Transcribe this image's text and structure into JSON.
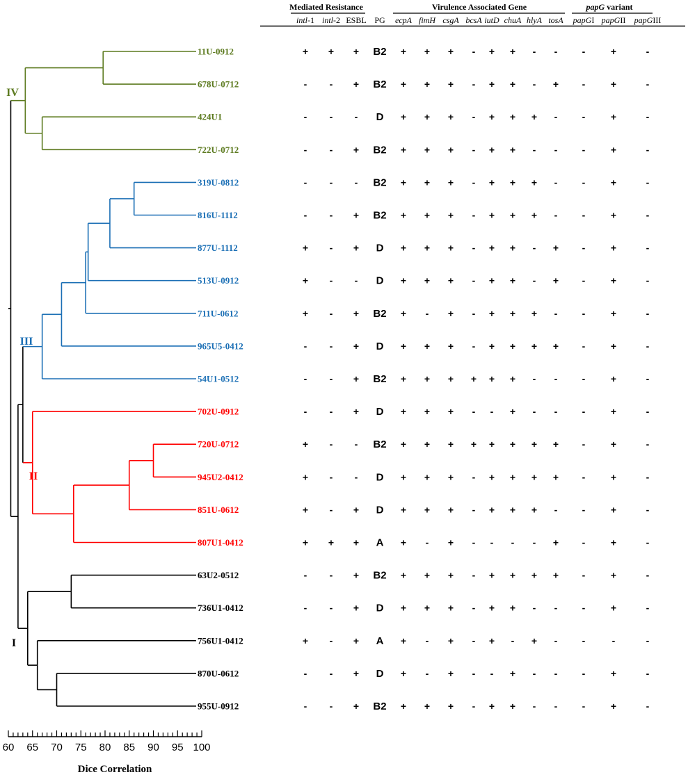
{
  "headers": {
    "groups": [
      {
        "key": "mediated",
        "label": "Mediated Resistance"
      },
      {
        "key": "virulence",
        "label": "Virulence Associated Gene"
      },
      {
        "key": "papg",
        "italic": "papG",
        "rest": " variant"
      }
    ],
    "columns": [
      {
        "italic": "intl",
        "rest": "-1"
      },
      {
        "italic": "intl",
        "rest": "-2"
      },
      {
        "italic": "",
        "rest": "ESBL"
      },
      {
        "italic": "",
        "rest": "PG"
      },
      {
        "italic": "ecpA",
        "rest": ""
      },
      {
        "italic": "fimH",
        "rest": ""
      },
      {
        "italic": "csgA",
        "rest": ""
      },
      {
        "italic": "bcsA",
        "rest": ""
      },
      {
        "italic": "iutD",
        "rest": ""
      },
      {
        "italic": "chuA",
        "rest": ""
      },
      {
        "italic": "hlyA",
        "rest": ""
      },
      {
        "italic": "tosA",
        "rest": ""
      },
      {
        "italic": "papG",
        "rest": "I"
      },
      {
        "italic": "papG",
        "rest": "II"
      },
      {
        "italic": "papG",
        "rest": "III"
      }
    ]
  },
  "colors": {
    "I": "#000000",
    "II": "#ff0000",
    "III": "#1b6fb5",
    "IV": "#5c7a1f"
  },
  "clade_labels": [
    "I",
    "II",
    "III",
    "IV"
  ],
  "strains": [
    {
      "name": "11U-0912",
      "clade": "IV",
      "cells": [
        "+",
        "+",
        "+",
        "B2",
        "+",
        "+",
        "+",
        "-",
        "+",
        "+",
        "-",
        "-",
        "-",
        "+",
        "-"
      ]
    },
    {
      "name": "678U-0712",
      "clade": "IV",
      "cells": [
        "-",
        "-",
        "+",
        "B2",
        "+",
        "+",
        "+",
        "-",
        "+",
        "+",
        "-",
        "+",
        "-",
        "+",
        "-"
      ]
    },
    {
      "name": "424U1",
      "clade": "IV",
      "cells": [
        "-",
        "-",
        "-",
        "D",
        "+",
        "+",
        "+",
        "-",
        "+",
        "+",
        "+",
        "-",
        "-",
        "+",
        "-"
      ]
    },
    {
      "name": "722U-0712",
      "clade": "IV",
      "cells": [
        "-",
        "-",
        "+",
        "B2",
        "+",
        "+",
        "+",
        "-",
        "+",
        "+",
        "-",
        "-",
        "-",
        "+",
        "-"
      ]
    },
    {
      "name": "319U-0812",
      "clade": "III",
      "cells": [
        "-",
        "-",
        "-",
        "B2",
        "+",
        "+",
        "+",
        "-",
        "+",
        "+",
        "+",
        "-",
        "-",
        "+",
        "-"
      ]
    },
    {
      "name": "816U-1112",
      "clade": "III",
      "cells": [
        "-",
        "-",
        "+",
        "B2",
        "+",
        "+",
        "+",
        "-",
        "+",
        "+",
        "+",
        "-",
        "-",
        "+",
        "-"
      ]
    },
    {
      "name": "877U-1112",
      "clade": "III",
      "cells": [
        "+",
        "-",
        "+",
        "D",
        "+",
        "+",
        "+",
        "-",
        "+",
        "+",
        "-",
        "+",
        "-",
        "+",
        "-"
      ]
    },
    {
      "name": "513U-0912",
      "clade": "III",
      "cells": [
        "+",
        "-",
        "-",
        "D",
        "+",
        "+",
        "+",
        "-",
        "+",
        "+",
        "-",
        "+",
        "-",
        "+",
        "-"
      ]
    },
    {
      "name": "711U-0612",
      "clade": "III",
      "cells": [
        "+",
        "-",
        "+",
        "B2",
        "+",
        "-",
        "+",
        "-",
        "+",
        "+",
        "+",
        "-",
        "-",
        "+",
        "-"
      ]
    },
    {
      "name": "965U5-0412",
      "clade": "III",
      "cells": [
        "-",
        "-",
        "+",
        "D",
        "+",
        "+",
        "+",
        "-",
        "+",
        "+",
        "+",
        "+",
        "-",
        "+",
        "-"
      ]
    },
    {
      "name": "54U1-0512",
      "clade": "III",
      "cells": [
        "-",
        "-",
        "+",
        "B2",
        "+",
        "+",
        "+",
        "+",
        "+",
        "+",
        "-",
        "-",
        "-",
        "+",
        "-"
      ]
    },
    {
      "name": "702U-0912",
      "clade": "II",
      "cells": [
        "-",
        "-",
        "+",
        "D",
        "+",
        "+",
        "+",
        "-",
        "-",
        "+",
        "-",
        "-",
        "-",
        "+",
        "-"
      ]
    },
    {
      "name": "720U-0712",
      "clade": "II",
      "cells": [
        "+",
        "-",
        "-",
        "B2",
        "+",
        "+",
        "+",
        "+",
        "+",
        "+",
        "+",
        "+",
        "-",
        "+",
        "-"
      ]
    },
    {
      "name": "945U2-0412",
      "clade": "II",
      "cells": [
        "+",
        "-",
        "-",
        "D",
        "+",
        "+",
        "+",
        "-",
        "+",
        "+",
        "+",
        "+",
        "-",
        "+",
        "-"
      ]
    },
    {
      "name": "851U-0612",
      "clade": "II",
      "cells": [
        "+",
        "-",
        "+",
        "D",
        "+",
        "+",
        "+",
        "-",
        "+",
        "+",
        "+",
        "-",
        "-",
        "+",
        "-"
      ]
    },
    {
      "name": "807U1-0412",
      "clade": "II",
      "cells": [
        "+",
        "+",
        "+",
        "A",
        "+",
        "-",
        "+",
        "-",
        "-",
        "-",
        "-",
        "+",
        "-",
        "+",
        "-"
      ]
    },
    {
      "name": "63U2-0512",
      "clade": "I",
      "cells": [
        "-",
        "-",
        "+",
        "B2",
        "+",
        "+",
        "+",
        "-",
        "+",
        "+",
        "+",
        "+",
        "-",
        "+",
        "-"
      ]
    },
    {
      "name": "736U1-0412",
      "clade": "I",
      "cells": [
        "-",
        "-",
        "+",
        "D",
        "+",
        "+",
        "+",
        "-",
        "+",
        "+",
        "-",
        "-",
        "-",
        "+",
        "-"
      ]
    },
    {
      "name": "756U1-0412",
      "clade": "I",
      "cells": [
        "+",
        "-",
        "+",
        "A",
        "+",
        "-",
        "+",
        "-",
        "+",
        "-",
        "+",
        "-",
        "-",
        "-",
        "-"
      ]
    },
    {
      "name": "870U-0612",
      "clade": "I",
      "cells": [
        "-",
        "-",
        "+",
        "D",
        "+",
        "-",
        "+",
        "-",
        "-",
        "+",
        "-",
        "-",
        "-",
        "+",
        "-"
      ]
    },
    {
      "name": "955U-0912",
      "clade": "I",
      "cells": [
        "-",
        "-",
        "+",
        "B2",
        "+",
        "+",
        "+",
        "-",
        "+",
        "+",
        "-",
        "-",
        "-",
        "+",
        "-"
      ]
    }
  ],
  "tree_nodes": [
    {
      "id": "n_4_1",
      "value": 79.6,
      "children": [
        "L0",
        "L1"
      ]
    },
    {
      "id": "n_4_2",
      "value": 67.0,
      "children": [
        "L2",
        "L3"
      ]
    },
    {
      "id": "n_IV",
      "value": 63.5,
      "children": [
        "n_4_1",
        "n_4_2"
      ]
    },
    {
      "id": "n_3_1",
      "value": 86.0,
      "children": [
        "L4",
        "L5"
      ]
    },
    {
      "id": "n_3_2",
      "value": 81.0,
      "children": [
        "n_3_1",
        "L6"
      ]
    },
    {
      "id": "n_3_3",
      "value": 76.5,
      "children": [
        "n_3_2",
        "L7"
      ]
    },
    {
      "id": "n_3_4",
      "value": 76.0,
      "children": [
        "n_3_3",
        "L8"
      ]
    },
    {
      "id": "n_3_5",
      "value": 71.0,
      "children": [
        "n_3_4",
        "L9"
      ]
    },
    {
      "id": "n_III",
      "value": 67.0,
      "children": [
        "n_3_5",
        "L10"
      ]
    },
    {
      "id": "n_2_1",
      "value": 90.0,
      "children": [
        "L12",
        "L13"
      ]
    },
    {
      "id": "n_2_2",
      "value": 85.0,
      "children": [
        "n_2_1",
        "L14"
      ]
    },
    {
      "id": "n_2_3",
      "value": 73.5,
      "children": [
        "n_2_2",
        "L15"
      ]
    },
    {
      "id": "n_II",
      "value": 65.0,
      "children": [
        "L11",
        "n_2_3"
      ]
    },
    {
      "id": "n_IIIII",
      "value": 63.0,
      "children": [
        "n_III",
        "n_II"
      ]
    },
    {
      "id": "n_1_1",
      "value": 73.0,
      "children": [
        "L16",
        "L17"
      ]
    },
    {
      "id": "n_1_2",
      "value": 70.0,
      "children": [
        "L19",
        "L20"
      ]
    },
    {
      "id": "n_1_3",
      "value": 66.0,
      "children": [
        "L18",
        "n_1_2"
      ]
    },
    {
      "id": "n_I",
      "value": 64.0,
      "children": [
        "n_1_1",
        "n_1_3"
      ]
    },
    {
      "id": "n_low",
      "value": 62.0,
      "children": [
        "n_IIIII",
        "n_I"
      ]
    },
    {
      "id": "root",
      "value": 60.5,
      "children": [
        "n_IV",
        "n_low"
      ]
    }
  ],
  "axis": {
    "min": 60,
    "max": 100,
    "major_step": 5,
    "minor_step": 1,
    "tick_labels": [
      "60",
      "65",
      "70",
      "75",
      "80",
      "85",
      "90",
      "95",
      "100"
    ],
    "title": "Dice Correlation"
  }
}
